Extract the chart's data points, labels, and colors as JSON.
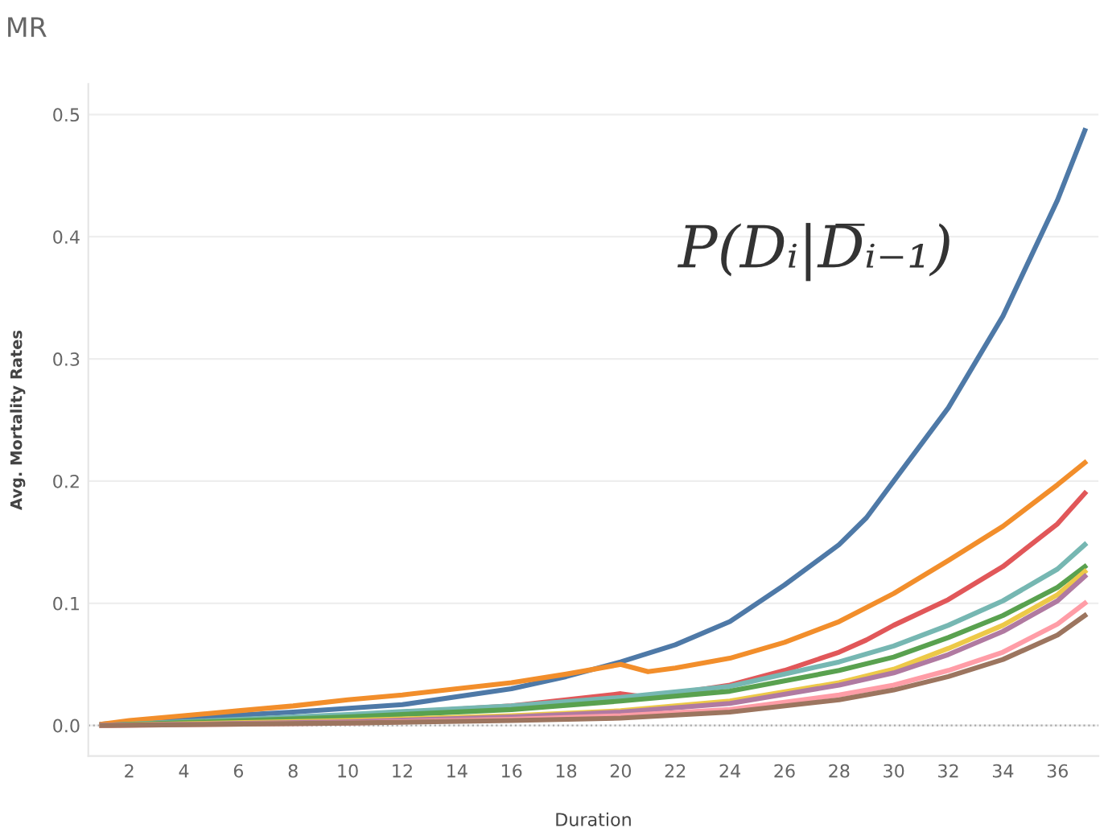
{
  "chart_data": {
    "type": "line",
    "title": "MR",
    "xlabel": "Duration",
    "ylabel": "Avg. Mortality Rates",
    "annotations": [
      "P(Dᵢ|D̅ᵢ₋₁)"
    ],
    "xlim": [
      0.5,
      37.5
    ],
    "xticks": [
      2,
      4,
      6,
      8,
      10,
      12,
      14,
      16,
      18,
      20,
      22,
      24,
      26,
      28,
      30,
      32,
      34,
      36
    ],
    "ylim": [
      -0.025,
      0.525
    ],
    "yticks": [
      {
        "value": 0,
        "label": "0.0"
      },
      0.1,
      0.2,
      0.3,
      0.4,
      0.5
    ],
    "grid": "y",
    "legend": false,
    "marker": "none",
    "line_style": "solid",
    "ref_lines": [
      {
        "axis": "y",
        "value": 0,
        "color": "#aaaaaa",
        "line_style": "dotted"
      }
    ],
    "series": [
      {
        "color": "#4e79a7",
        "x": [
          1,
          4,
          8,
          12,
          16,
          18,
          20,
          22,
          24,
          26,
          28,
          29,
          30,
          32,
          34,
          36,
          37
        ],
        "values": [
          0.001,
          0.006,
          0.011,
          0.017,
          0.03,
          0.04,
          0.052,
          0.066,
          0.085,
          0.115,
          0.148,
          0.17,
          0.2,
          0.26,
          0.335,
          0.43,
          0.487
        ]
      },
      {
        "color": "#f28e2b",
        "x": [
          1,
          2,
          4,
          6,
          8,
          10,
          12,
          14,
          16,
          18,
          20,
          21,
          22,
          24,
          26,
          28,
          30,
          32,
          34,
          36,
          37
        ],
        "values": [
          0.001,
          0.004,
          0.008,
          0.012,
          0.016,
          0.021,
          0.025,
          0.03,
          0.035,
          0.042,
          0.05,
          0.044,
          0.047,
          0.055,
          0.068,
          0.085,
          0.108,
          0.135,
          0.163,
          0.197,
          0.215
        ]
      },
      {
        "color": "#e15759",
        "x": [
          1,
          10,
          16,
          20,
          21,
          24,
          26,
          28,
          29,
          30,
          32,
          34,
          36,
          37
        ],
        "values": [
          0.0,
          0.008,
          0.016,
          0.026,
          0.023,
          0.033,
          0.045,
          0.06,
          0.07,
          0.082,
          0.103,
          0.13,
          0.165,
          0.19
        ]
      },
      {
        "color": "#76b7b2",
        "x": [
          1,
          10,
          16,
          20,
          24,
          28,
          30,
          32,
          34,
          36,
          37
        ],
        "values": [
          0.0,
          0.009,
          0.016,
          0.023,
          0.032,
          0.052,
          0.065,
          0.082,
          0.102,
          0.128,
          0.148
        ]
      },
      {
        "color": "#59a14f",
        "x": [
          1,
          10,
          16,
          20,
          24,
          28,
          30,
          32,
          34,
          36,
          37
        ],
        "values": [
          0.0,
          0.007,
          0.013,
          0.02,
          0.028,
          0.045,
          0.056,
          0.072,
          0.09,
          0.113,
          0.13
        ]
      },
      {
        "color": "#edc948",
        "x": [
          1,
          10,
          16,
          20,
          24,
          28,
          30,
          32,
          34,
          36,
          37
        ],
        "values": [
          0.0,
          0.004,
          0.008,
          0.012,
          0.02,
          0.035,
          0.046,
          0.063,
          0.082,
          0.107,
          0.126
        ]
      },
      {
        "color": "#b07aa1",
        "x": [
          1,
          10,
          16,
          20,
          24,
          28,
          30,
          32,
          34,
          36,
          37
        ],
        "values": [
          0.0,
          0.003,
          0.007,
          0.011,
          0.018,
          0.033,
          0.043,
          0.058,
          0.077,
          0.102,
          0.122
        ]
      },
      {
        "color": "#ff9da7",
        "x": [
          1,
          10,
          16,
          20,
          24,
          28,
          30,
          32,
          34,
          36,
          37
        ],
        "values": [
          0.0,
          0.002,
          0.005,
          0.008,
          0.013,
          0.025,
          0.033,
          0.045,
          0.06,
          0.083,
          0.1
        ]
      },
      {
        "color": "#9c755f",
        "x": [
          1,
          10,
          16,
          20,
          24,
          28,
          30,
          32,
          34,
          36,
          37
        ],
        "values": [
          0.0,
          0.002,
          0.004,
          0.006,
          0.011,
          0.021,
          0.029,
          0.04,
          0.054,
          0.074,
          0.09
        ]
      }
    ]
  }
}
